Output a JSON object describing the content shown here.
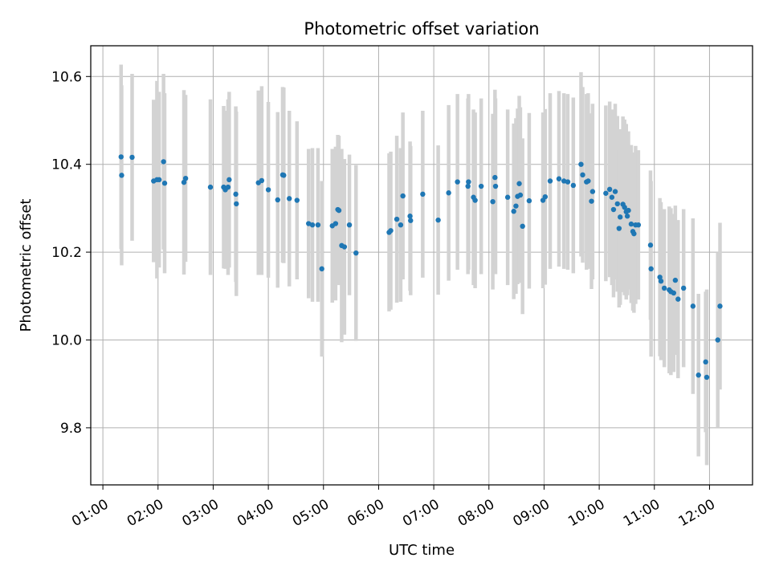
{
  "chart_data": {
    "type": "scatter",
    "title": "Photometric offset variation",
    "xlabel": "UTC time",
    "ylabel": "Photometric offset",
    "xlim": [
      0.78,
      12.78
    ],
    "ylim": [
      9.67,
      10.67
    ],
    "grid": true,
    "x_ticks": [
      1,
      2,
      3,
      4,
      5,
      6,
      7,
      8,
      9,
      10,
      11,
      12
    ],
    "x_tick_labels": [
      "01:00",
      "02:00",
      "03:00",
      "04:00",
      "05:00",
      "06:00",
      "07:00",
      "08:00",
      "09:00",
      "10:00",
      "11:00",
      "12:00"
    ],
    "y_ticks": [
      9.8,
      10.0,
      10.2,
      10.4,
      10.6
    ],
    "y_tick_labels": [
      "9.8",
      "10.0",
      "10.2",
      "10.4",
      "10.6"
    ],
    "marker_color": "#1f77b4",
    "errorbar_color": "#d3d3d3",
    "series": [
      {
        "name": "Photometric offset",
        "points": [
          [
            1.33,
            10.417,
            0.21
          ],
          [
            1.34,
            10.375,
            0.205
          ],
          [
            1.53,
            10.416,
            0.19
          ],
          [
            1.92,
            10.362,
            0.185
          ],
          [
            1.98,
            10.365,
            0.225
          ],
          [
            2.02,
            10.365,
            0.2
          ],
          [
            2.1,
            10.406,
            0.2
          ],
          [
            2.12,
            10.357,
            0.205
          ],
          [
            2.47,
            10.359,
            0.21
          ],
          [
            2.5,
            10.368,
            0.19
          ],
          [
            2.95,
            10.348,
            0.2
          ],
          [
            3.19,
            10.348,
            0.185
          ],
          [
            3.22,
            10.342,
            0.18
          ],
          [
            3.27,
            10.348,
            0.2
          ],
          [
            3.29,
            10.365,
            0.2
          ],
          [
            3.41,
            10.332,
            0.2
          ],
          [
            3.42,
            10.31,
            0.21
          ],
          [
            3.82,
            10.358,
            0.21
          ],
          [
            3.88,
            10.363,
            0.215
          ],
          [
            4.0,
            10.342,
            0.2
          ],
          [
            4.17,
            10.319,
            0.2
          ],
          [
            4.26,
            10.376,
            0.2
          ],
          [
            4.28,
            10.375,
            0.2
          ],
          [
            4.38,
            10.322,
            0.2
          ],
          [
            4.52,
            10.318,
            0.18
          ],
          [
            4.73,
            10.265,
            0.17
          ],
          [
            4.8,
            10.262,
            0.175
          ],
          [
            4.9,
            10.262,
            0.175
          ],
          [
            4.97,
            10.162,
            0.2
          ],
          [
            5.16,
            10.26,
            0.175
          ],
          [
            5.22,
            10.265,
            0.175
          ],
          [
            5.26,
            10.297,
            0.17
          ],
          [
            5.28,
            10.295,
            0.17
          ],
          [
            5.33,
            10.215,
            0.22
          ],
          [
            5.38,
            10.212,
            0.2
          ],
          [
            5.47,
            10.262,
            0.16
          ],
          [
            5.59,
            10.198,
            0.2
          ],
          [
            6.19,
            10.245,
            0.18
          ],
          [
            6.22,
            10.249,
            0.18
          ],
          [
            6.33,
            10.275,
            0.19
          ],
          [
            6.4,
            10.262,
            0.175
          ],
          [
            6.44,
            10.328,
            0.19
          ],
          [
            6.57,
            10.282,
            0.17
          ],
          [
            6.58,
            10.272,
            0.17
          ],
          [
            6.8,
            10.332,
            0.19
          ],
          [
            7.08,
            10.273,
            0.17
          ],
          [
            7.27,
            10.335,
            0.2
          ],
          [
            7.43,
            10.36,
            0.2
          ],
          [
            7.62,
            10.35,
            0.2
          ],
          [
            7.63,
            10.36,
            0.2
          ],
          [
            7.72,
            10.325,
            0.2
          ],
          [
            7.75,
            10.318,
            0.2
          ],
          [
            7.86,
            10.35,
            0.2
          ],
          [
            8.07,
            10.315,
            0.2
          ],
          [
            8.11,
            10.37,
            0.2
          ],
          [
            8.12,
            10.35,
            0.2
          ],
          [
            8.34,
            10.325,
            0.2
          ],
          [
            8.45,
            10.293,
            0.2
          ],
          [
            8.49,
            10.305,
            0.2
          ],
          [
            8.52,
            10.327,
            0.2
          ],
          [
            8.55,
            10.356,
            0.2
          ],
          [
            8.57,
            10.33,
            0.2
          ],
          [
            8.61,
            10.259,
            0.2
          ],
          [
            8.73,
            10.317,
            0.2
          ],
          [
            8.98,
            10.318,
            0.2
          ],
          [
            9.02,
            10.326,
            0.2
          ],
          [
            9.11,
            10.362,
            0.2
          ],
          [
            9.27,
            10.367,
            0.2
          ],
          [
            9.36,
            10.362,
            0.2
          ],
          [
            9.43,
            10.36,
            0.2
          ],
          [
            9.53,
            10.352,
            0.2
          ],
          [
            9.67,
            10.4,
            0.21
          ],
          [
            9.7,
            10.376,
            0.2
          ],
          [
            9.77,
            10.36,
            0.2
          ],
          [
            9.8,
            10.362,
            0.2
          ],
          [
            9.86,
            10.316,
            0.2
          ],
          [
            9.88,
            10.338,
            0.2
          ],
          [
            10.12,
            10.334,
            0.2
          ],
          [
            10.19,
            10.343,
            0.2
          ],
          [
            10.23,
            10.325,
            0.2
          ],
          [
            10.26,
            10.297,
            0.2
          ],
          [
            10.29,
            10.338,
            0.2
          ],
          [
            10.33,
            10.31,
            0.2
          ],
          [
            10.36,
            10.254,
            0.18
          ],
          [
            10.38,
            10.28,
            0.2
          ],
          [
            10.43,
            10.309,
            0.2
          ],
          [
            10.46,
            10.302,
            0.2
          ],
          [
            10.49,
            10.292,
            0.2
          ],
          [
            10.51,
            10.282,
            0.18
          ],
          [
            10.53,
            10.295,
            0.18
          ],
          [
            10.58,
            10.264,
            0.18
          ],
          [
            10.61,
            10.247,
            0.18
          ],
          [
            10.63,
            10.242,
            0.18
          ],
          [
            10.66,
            10.262,
            0.18
          ],
          [
            10.71,
            10.262,
            0.17
          ],
          [
            10.93,
            10.216,
            0.17
          ],
          [
            10.94,
            10.162,
            0.2
          ],
          [
            11.1,
            10.143,
            0.18
          ],
          [
            11.12,
            10.134,
            0.18
          ],
          [
            11.18,
            10.118,
            0.18
          ],
          [
            11.27,
            10.114,
            0.19
          ],
          [
            11.3,
            10.11,
            0.19
          ],
          [
            11.35,
            10.107,
            0.18
          ],
          [
            11.38,
            10.136,
            0.17
          ],
          [
            11.43,
            10.093,
            0.18
          ],
          [
            11.53,
            10.118,
            0.18
          ],
          [
            11.7,
            10.077,
            0.2
          ],
          [
            11.8,
            9.92,
            0.185
          ],
          [
            11.93,
            9.95,
            0.16
          ],
          [
            11.95,
            9.915,
            0.2
          ],
          [
            12.15,
            10.0,
            0.2
          ],
          [
            12.19,
            10.077,
            0.19
          ]
        ]
      }
    ]
  }
}
